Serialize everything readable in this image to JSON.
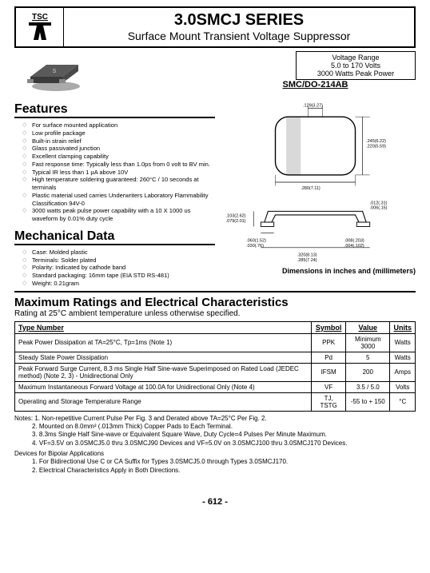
{
  "header": {
    "logo_text": "TSC",
    "title": "3.0SMCJ SERIES",
    "subtitle": "Surface Mount Transient Voltage Suppressor"
  },
  "voltage_range": {
    "label": "Voltage Range",
    "line1": "5.0 to 170 Volts",
    "line2": "3000 Watts Peak Power"
  },
  "package_label": "SMC/DO-214AB",
  "features_title": "Features",
  "features": [
    "For surface mounted application",
    "Low profile package",
    "Built-in strain relief",
    "Glass passivated junction",
    "Excellent clamping capability",
    "Fast response time: Typically less than 1.0ps from 0 volt to BV min.",
    "Typical IR less than 1 µA above 10V",
    "High temperature soldering guaranteed: 260°C / 10 seconds at terminals",
    "Plastic material used carries Underwriters Laboratory Flammability Classification 94V-0",
    "3000 watts peak pulse power capability with a 10 X 1000 us waveform by 0.01% duty cycle"
  ],
  "mech_title": "Mechanical Data",
  "mech": [
    "Case: Molded plastic",
    "Terminals: Solder plated",
    "Polarity: Indicated by cathode band",
    "Standard packaging: 16mm tape (EIA STD RS-481)",
    "Weight: 0.21gram"
  ],
  "dim_note": "Dimensions in inches and (millimeters)",
  "dims": {
    "top_w": ".129(3.27)",
    "right_h": ".245(6.22)\n.220(5.59)",
    "bot_w": ".280(7.11)",
    "side_t": ".012(.31)\n.006(.15)",
    "side_h": ".103(2.62)\n.079(2.01)",
    "side_l": ".060(1.52)\n.030(.76)",
    "side_w": ".320(8.13)\n.285(7.24)",
    "side_r": ".008(.203)\n.004(.102)"
  },
  "ratings_title": "Maximum Ratings and Electrical Characteristics",
  "ratings_sub": "Rating at 25°C ambient temperature unless otherwise specified.",
  "table": {
    "headers": [
      "Type Number",
      "Symbol",
      "Value",
      "Units"
    ],
    "rows": [
      [
        "Peak Power Dissipation at TA=25°C, Tp=1ms (Note 1)",
        "PPK",
        "Minimum 3000",
        "Watts"
      ],
      [
        "Steady State Power Dissipation",
        "Pd",
        "5",
        "Watts"
      ],
      [
        "Peak Forward Surge Current, 8.3 ms Single Half Sine-wave Superimposed on Rated Load (JEDEC method) (Note 2, 3) - Unidirectional Only",
        "IFSM",
        "200",
        "Amps"
      ],
      [
        "Maximum Instantaneous Forward Voltage at 100.0A for Unidirectional Only (Note 4)",
        "VF",
        "3.5 / 5.0",
        "Volts"
      ],
      [
        "Operating and Storage Temperature Range",
        "TJ, TSTG",
        "-55 to + 150",
        "°C"
      ]
    ]
  },
  "notes": {
    "n1": "Notes: 1. Non-repetitive Current Pulse Per Fig. 3 and Derated above TA=25°C Per Fig. 2.",
    "n2": "2. Mounted on 8.0mm² (.013mm Thick) Copper Pads to Each Terminal.",
    "n3": "3. 8.3ms Single Half Sine-wave or Equivalent Square Wave, Duty Cycle=4 Pulses Per Minute Maximum.",
    "n4": "4. VF=3.5V on 3.0SMCJ5.0 thru 3.0SMCJ90 Devices and VF=5.0V on 3.0SMCJ100 thru 3.0SMCJ170 Devices.",
    "bp_title": "Devices for Bipolar Applications",
    "bp1": "1. For Bidirectional Use C or CA Suffix for Types 3.0SMCJ5.0 through Types 3.0SMCJ170.",
    "bp2": "2. Electrical Characteristics Apply in Both Directions."
  },
  "pagenum": "- 612 -",
  "colors": {
    "chip_body": "#5a5a5a",
    "chip_shadow": "#2a2a2a",
    "diagram_line": "#000000"
  }
}
